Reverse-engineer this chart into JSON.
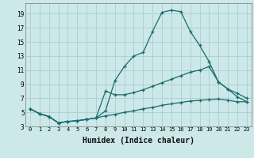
{
  "xlabel": "Humidex (Indice chaleur)",
  "ylabel": "",
  "bg_color": "#cce8e8",
  "line_color": "#1a6b6b",
  "grid_color": "#aacece",
  "xlim": [
    -0.5,
    23.5
  ],
  "ylim": [
    3,
    20.5
  ],
  "xticks": [
    0,
    1,
    2,
    3,
    4,
    5,
    6,
    7,
    8,
    9,
    10,
    11,
    12,
    13,
    14,
    15,
    16,
    17,
    18,
    19,
    20,
    21,
    22,
    23
  ],
  "yticks": [
    3,
    5,
    7,
    9,
    11,
    13,
    15,
    17,
    19
  ],
  "series": [
    {
      "x": [
        0,
        1,
        2,
        3,
        4,
        5,
        6,
        7,
        8,
        9,
        10,
        11,
        12,
        13,
        14,
        15,
        16,
        17,
        18,
        19,
        20,
        21,
        22,
        23
      ],
      "y": [
        5.5,
        4.8,
        4.4,
        3.5,
        3.7,
        3.8,
        4.0,
        4.2,
        5.2,
        9.5,
        11.5,
        13.0,
        13.5,
        16.5,
        19.2,
        19.5,
        19.3,
        16.5,
        14.5,
        12.2,
        9.3,
        8.3,
        7.2,
        6.5
      ]
    },
    {
      "x": [
        0,
        1,
        2,
        3,
        4,
        5,
        6,
        7,
        8,
        9,
        10,
        11,
        12,
        13,
        14,
        15,
        16,
        17,
        18,
        19,
        20,
        21,
        22,
        23
      ],
      "y": [
        5.5,
        4.8,
        4.4,
        3.5,
        3.7,
        3.8,
        4.0,
        4.2,
        8.0,
        7.5,
        7.5,
        7.8,
        8.2,
        8.7,
        9.2,
        9.7,
        10.2,
        10.7,
        11.0,
        11.5,
        9.3,
        8.3,
        7.7,
        7.0
      ]
    },
    {
      "x": [
        0,
        1,
        2,
        3,
        4,
        5,
        6,
        7,
        8,
        9,
        10,
        11,
        12,
        13,
        14,
        15,
        16,
        17,
        18,
        19,
        20,
        21,
        22,
        23
      ],
      "y": [
        5.5,
        4.8,
        4.4,
        3.5,
        3.7,
        3.8,
        4.0,
        4.2,
        4.5,
        4.7,
        5.0,
        5.2,
        5.5,
        5.7,
        6.0,
        6.2,
        6.4,
        6.6,
        6.7,
        6.8,
        6.9,
        6.7,
        6.5,
        6.5
      ]
    }
  ]
}
